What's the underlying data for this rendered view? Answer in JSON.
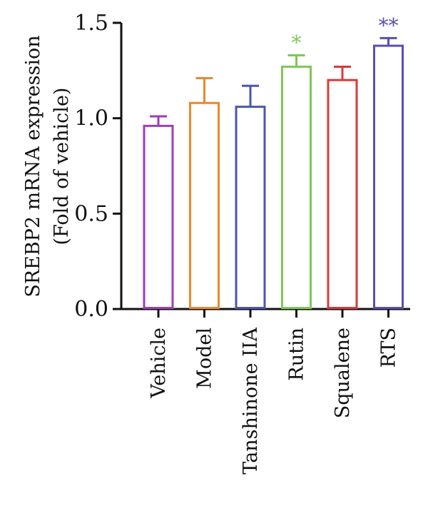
{
  "chart_data": {
    "type": "bar",
    "categories": [
      "Vehicle",
      "Model",
      "Tanshinone IIA",
      "Rutin",
      "Squalene",
      "RTS"
    ],
    "values": [
      0.96,
      1.08,
      1.06,
      1.27,
      1.2,
      1.38
    ],
    "errors": [
      0.05,
      0.13,
      0.11,
      0.06,
      0.07,
      0.04
    ],
    "colors": [
      "#9b3fb8",
      "#e88a2e",
      "#4b56b0",
      "#7ec85a",
      "#d93a3a",
      "#5a4fb0"
    ],
    "significance": [
      "",
      "",
      "",
      "*",
      "",
      "**"
    ],
    "ylabel_line1": "SREBP2 mRNA expression",
    "ylabel_line2": "(Fold of vehicle)",
    "ylim": [
      0,
      1.5
    ],
    "yticks": [
      "0.0",
      "0.5",
      "1.0",
      "1.5"
    ],
    "legend": "none",
    "grid": false
  }
}
